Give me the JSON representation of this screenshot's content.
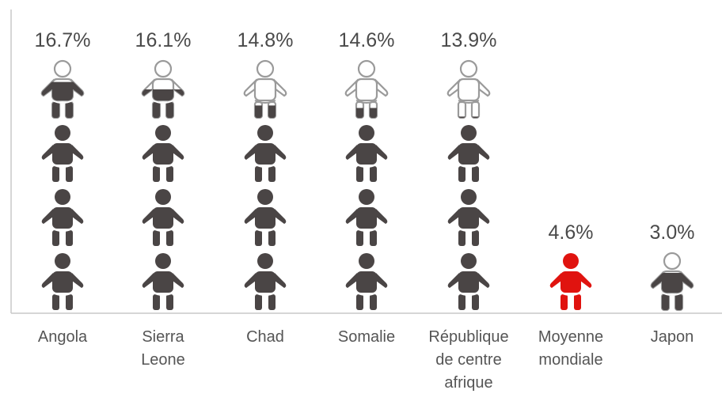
{
  "chart_data": {
    "type": "bar",
    "title": "",
    "categories": [
      "Angola",
      "Sierra Leone",
      "Chad",
      "Somalie",
      "République de centre afrique",
      "Moyenne mondiale",
      "Japon"
    ],
    "category_lines": [
      [
        "Angola"
      ],
      [
        "Sierra",
        "Leone"
      ],
      [
        "Chad"
      ],
      [
        "Somalie"
      ],
      [
        "République",
        "de centre",
        "afrique"
      ],
      [
        "Moyenne",
        "mondiale"
      ],
      [
        "Japon"
      ]
    ],
    "value_labels": [
      "16.7%",
      "16.1%",
      "14.8%",
      "14.6%",
      "13.9%",
      "4.6%",
      "3.0%"
    ],
    "values": [
      16.7,
      16.1,
      14.8,
      14.6,
      13.9,
      4.6,
      3.0
    ],
    "unit": "%",
    "icon": "baby-icon",
    "icon_value": 4.6,
    "highlight_category": "Moyenne mondiale",
    "colors": {
      "icon_fill": "#4a4545",
      "highlight": "#e0130f",
      "outline": "#9a9a9a",
      "axis": "#c8c8c8",
      "text": "#4a4a4a"
    }
  }
}
